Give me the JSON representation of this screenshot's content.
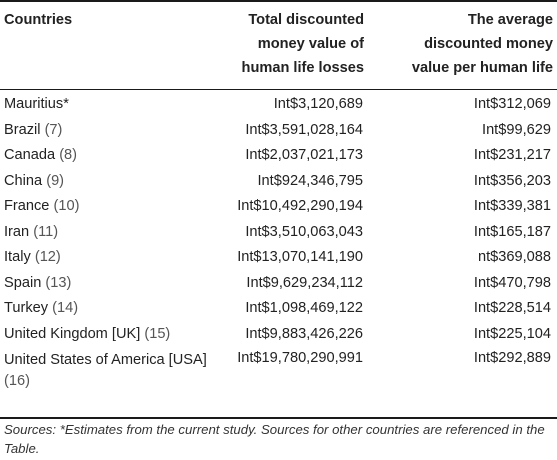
{
  "table": {
    "headers": {
      "country": "Countries",
      "total_line1": "Total discounted",
      "total_line2": "money value of",
      "total_line3": "human life losses",
      "avg_line1": "The average",
      "avg_line2": "discounted money",
      "avg_line3": "value per human life"
    },
    "rows": [
      {
        "country": "Mauritius*",
        "ref": "",
        "total": "Int$3,120,689",
        "average": "Int$312,069"
      },
      {
        "country": "Brazil",
        "ref": "(7)",
        "total": "Int$3,591,028,164",
        "average": "Int$99,629"
      },
      {
        "country": "Canada",
        "ref": "(8)",
        "total": "Int$2,037,021,173",
        "average": "Int$231,217"
      },
      {
        "country": "China",
        "ref": "(9)",
        "total": "Int$924,346,795",
        "average": "Int$356,203"
      },
      {
        "country": "France",
        "ref": "(10)",
        "total": "Int$10,492,290,194",
        "average": "Int$339,381"
      },
      {
        "country": "Iran",
        "ref": "(11)",
        "total": "Int$3,510,063,043",
        "average": "Int$165,187"
      },
      {
        "country": "Italy",
        "ref": "(12)",
        "total": "Int$13,070,141,190",
        "average": "nt$369,088"
      },
      {
        "country": "Spain",
        "ref": "(13)",
        "total": "Int$9,629,234,112",
        "average": "Int$470,798"
      },
      {
        "country": "Turkey",
        "ref": "(14)",
        "total": "Int$1,098,469,122",
        "average": "Int$228,514"
      },
      {
        "country": "United Kingdom [UK]",
        "ref": "(15)",
        "total": "Int$9,883,426,226",
        "average": "Int$225,104"
      },
      {
        "country": "United States of America [USA]",
        "ref": "(16)",
        "total": "Int$19,780,290,991",
        "average": "Int$292,889"
      }
    ]
  },
  "sources": "Sources: *Estimates from the current study. Sources for other countries are referenced in the Table."
}
